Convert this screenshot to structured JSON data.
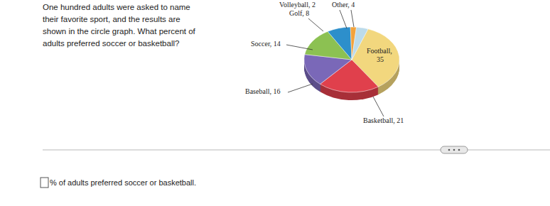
{
  "question": {
    "lines": [
      "One hundred adults were asked to name",
      "their favorite sport, and the results are",
      "shown in the circle graph. What percent of",
      "adults preferred soccer or basketball?"
    ]
  },
  "answer": {
    "suffix": "% of adults preferred soccer or basketball."
  },
  "chart_data": {
    "type": "pie",
    "categories": [
      "Football",
      "Basketball",
      "Baseball",
      "Soccer",
      "Golf",
      "Volleyball",
      "Other"
    ],
    "values": [
      35,
      21,
      16,
      14,
      8,
      2,
      4
    ],
    "value_labels": [
      "Football, 35",
      "Basketball, 21",
      "Baseball, 16",
      "Soccer, 14",
      "Golf, 8",
      "Volleyball, 2",
      "Other, 4"
    ],
    "data_labels": true,
    "colors": [
      "#f2d77e",
      "#e0404c",
      "#7a68b8",
      "#8cc152",
      "#2d8fcb",
      "#f3a33c",
      "#bcdbea"
    ]
  }
}
